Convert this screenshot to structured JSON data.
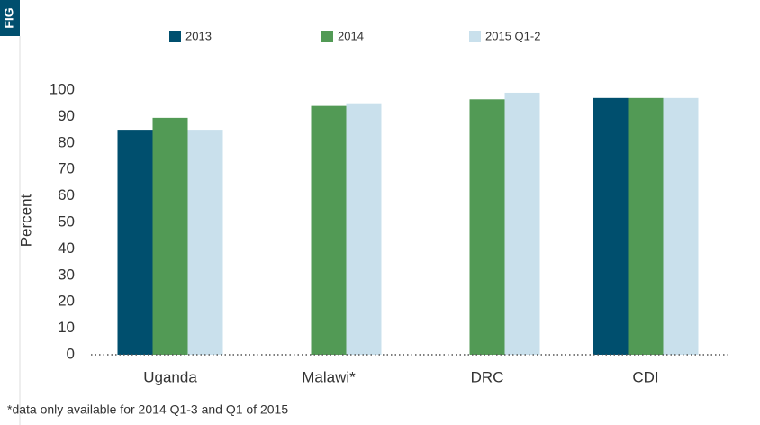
{
  "figure_tab": "FIG",
  "chart_data": {
    "type": "bar",
    "categories": [
      "Uganda",
      "Malawi*",
      "DRC",
      "CDI"
    ],
    "series": [
      {
        "name": "2013",
        "color": "#004f6e",
        "values": [
          85,
          null,
          null,
          97
        ]
      },
      {
        "name": "2014",
        "color": "#529a55",
        "values": [
          89.5,
          94,
          96.5,
          97
        ]
      },
      {
        "name": "2015 Q1-2",
        "color": "#c9e0ec",
        "values": [
          85,
          95,
          99,
          97
        ]
      }
    ],
    "y_label": "Percent",
    "ylim": [
      0,
      100
    ],
    "yticks": [
      0,
      10,
      20,
      30,
      40,
      50,
      60,
      70,
      80,
      90,
      100
    ],
    "legend": "top",
    "note": "*data only available for 2014 Q1-3 and Q1 of 2015"
  }
}
